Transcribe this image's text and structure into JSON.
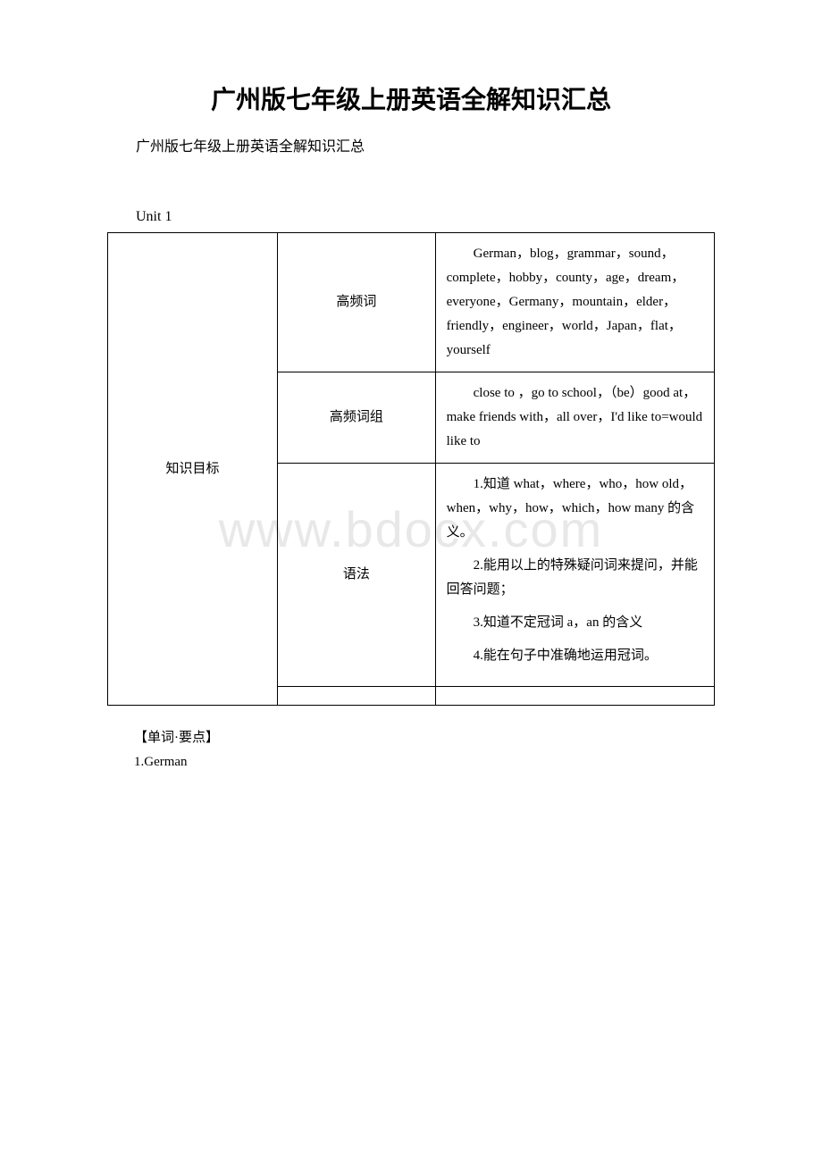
{
  "document": {
    "title": "广州版七年级上册英语全解知识汇总",
    "subtitle": "广州版七年级上册英语全解知识汇总",
    "unit_label": "Unit 1"
  },
  "table": {
    "row_header": "知识目标",
    "rows": [
      {
        "label": "高频词",
        "content": "German，blog，grammar，sound，complete，hobby，county，age，dream，everyone，Germany，mountain，elder，friendly，engineer，world，Japan，flat，yourself"
      },
      {
        "label": "高频词组",
        "content": "close to ，go to school，（be）good at，make friends with，all over，I'd like to=would like to"
      },
      {
        "label": "语法",
        "grammar_items": [
          "1.知道 what，where，who，how old，when，why，how，which，how many 的含义。",
          "2.能用以上的特殊疑问词来提问，并能回答问题；",
          "3.知道不定冠词 a，an 的含义",
          "4.能在句子中准确地运用冠词。"
        ]
      }
    ]
  },
  "footer": {
    "section": "【单词·要点】",
    "item1": "1.German"
  },
  "watermark": "www.bdocx.com",
  "colors": {
    "background": "#ffffff",
    "text": "#000000",
    "border": "#000000",
    "watermark": "#e8e8e8"
  }
}
